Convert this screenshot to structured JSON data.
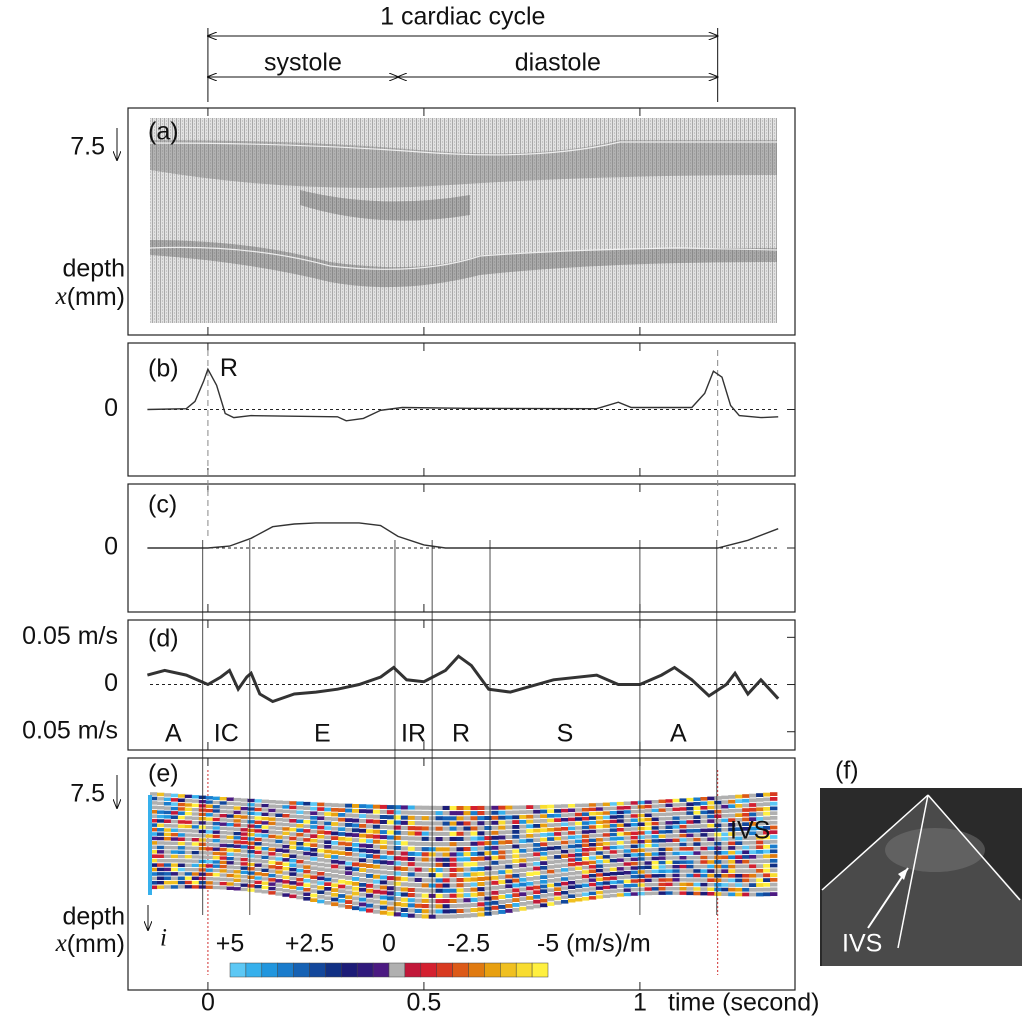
{
  "time_axis": {
    "xlim": [
      -0.185,
      1.359
    ],
    "xticks": [
      0,
      0.5,
      1
    ],
    "label": "time (second)"
  },
  "annotations": {
    "cycle_label": "1 cardiac cycle",
    "systole": "systole",
    "diastole": "diastole",
    "cycle_start": 0,
    "systole_end": 0.44,
    "cycle_end": 1.18
  },
  "phases": {
    "boundaries": [
      -0.012,
      0.097,
      0.433,
      0.519,
      0.653,
      1.0,
      1.178
    ],
    "labels": [
      "A",
      "IC",
      "E",
      "IR",
      "R",
      "S",
      "A"
    ]
  },
  "chart_data": [
    {
      "type": "image",
      "panel_label": "(a)",
      "ytick_label": "7.5",
      "ylabel": [
        "depth",
        "x",
        "(mm)"
      ]
    },
    {
      "type": "line",
      "panel_label": "(b)",
      "peak_label": "R",
      "color": "#333333",
      "ylim": [
        -1.5,
        1.5
      ],
      "yticks": [
        0
      ],
      "x": [
        -0.14,
        -0.05,
        -0.03,
        -0.01,
        0.0,
        0.02,
        0.04,
        0.06,
        0.1,
        0.3,
        0.32,
        0.36,
        0.4,
        0.45,
        0.6,
        0.9,
        0.95,
        0.98,
        1.12,
        1.15,
        1.17,
        1.19,
        1.21,
        1.23,
        1.28,
        1.32
      ],
      "values": [
        0,
        0.02,
        0.2,
        0.7,
        1.0,
        0.6,
        -0.1,
        -0.2,
        -0.15,
        -0.18,
        -0.28,
        -0.22,
        -0.02,
        0.05,
        0.03,
        0.02,
        0.18,
        0.05,
        0.05,
        0.4,
        0.95,
        0.8,
        0.1,
        -0.15,
        -0.2,
        -0.18
      ]
    },
    {
      "type": "line",
      "panel_label": "(c)",
      "color": "#333333",
      "ylim": [
        -1.5,
        1.5
      ],
      "yticks": [
        0
      ],
      "x": [
        -0.14,
        0.0,
        0.05,
        0.1,
        0.15,
        0.2,
        0.25,
        0.35,
        0.4,
        0.44,
        0.5,
        0.55,
        1.18,
        1.25,
        1.32
      ],
      "values": [
        0,
        0,
        0.05,
        0.25,
        0.55,
        0.62,
        0.65,
        0.65,
        0.58,
        0.3,
        0.08,
        0,
        0,
        0.2,
        0.5
      ]
    },
    {
      "type": "line",
      "panel_label": "(d)",
      "color": "#333333",
      "ylim": [
        -0.063,
        0.062
      ],
      "yticks": [
        {
          "value": 0.05,
          "label": "0.05 m/s"
        },
        0,
        {
          "value": -0.05,
          "label": "0.05 m/s"
        }
      ],
      "x": [
        -0.14,
        -0.1,
        -0.05,
        0,
        0.03,
        0.05,
        0.07,
        0.09,
        0.1,
        0.12,
        0.15,
        0.2,
        0.25,
        0.3,
        0.35,
        0.4,
        0.43,
        0.46,
        0.5,
        0.55,
        0.58,
        0.61,
        0.65,
        0.7,
        0.8,
        0.9,
        0.95,
        1.0,
        1.05,
        1.08,
        1.12,
        1.16,
        1.2,
        1.22,
        1.25,
        1.28,
        1.32
      ],
      "values": [
        0.01,
        0.015,
        0.01,
        0.0,
        0.008,
        0.015,
        -0.005,
        0.008,
        0.012,
        -0.01,
        -0.018,
        -0.01,
        -0.008,
        -0.005,
        0.0,
        0.008,
        0.018,
        0.005,
        0.003,
        0.015,
        0.03,
        0.02,
        -0.005,
        -0.008,
        0.005,
        0.01,
        0.0,
        0.0,
        0.01,
        0.018,
        0.005,
        -0.012,
        0.0,
        0.012,
        -0.01,
        0.005,
        -0.015
      ]
    },
    {
      "type": "heatmap",
      "panel_label": "(e)",
      "ytick_label": "7.5",
      "ylabel": [
        "depth",
        "x",
        "(mm)"
      ],
      "index_label": "i",
      "annotation": "IVS",
      "colorbar": {
        "range": [
          5,
          -5
        ],
        "unit": "(m/s)/m",
        "ticks": [
          {
            "value": 5,
            "label": "+5"
          },
          {
            "value": 2.5,
            "label": "+2.5"
          },
          0,
          -2.5,
          -5
        ],
        "colors": [
          "#5cc8f5",
          "#36b0ec",
          "#2196de",
          "#1a7ccc",
          "#1662b4",
          "#13489c",
          "#113084",
          "#1c1c78",
          "#301a7c",
          "#4c1a82",
          "#b0b0b0",
          "#c2183a",
          "#d42030",
          "#d83a20",
          "#dc5a18",
          "#e07a10",
          "#e8a010",
          "#f0c020",
          "#f8dc30",
          "#fff040"
        ]
      }
    },
    {
      "type": "image",
      "panel_label": "(f)",
      "annotation": "IVS"
    }
  ]
}
